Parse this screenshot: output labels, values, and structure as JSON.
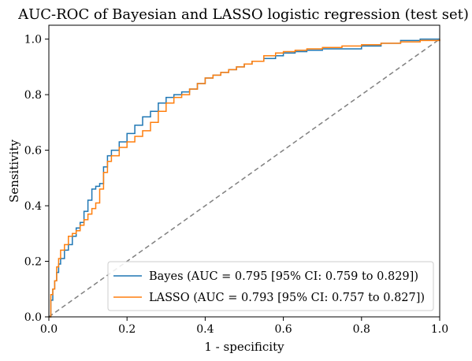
{
  "chart_data": {
    "type": "line",
    "title": "AUC-ROC of Bayesian and LASSO logistic regression (test set)",
    "xlabel": "1 - specificity",
    "ylabel": "Sensitivity",
    "xlim": [
      0,
      1
    ],
    "ylim": [
      0,
      1.05
    ],
    "xticks": [
      "0.0",
      "0.2",
      "0.4",
      "0.6",
      "0.8",
      "1.0"
    ],
    "yticks": [
      "0.0",
      "0.2",
      "0.4",
      "0.6",
      "0.8",
      "1.0"
    ],
    "grid": false,
    "legend_position": "lower-right",
    "series": [
      {
        "name": "Bayes (AUC = 0.795 [95% CI: 0.759 to 0.829])",
        "color": "#1f77b4",
        "x": [
          0,
          0.005,
          0.01,
          0.015,
          0.02,
          0.025,
          0.03,
          0.04,
          0.05,
          0.06,
          0.07,
          0.08,
          0.09,
          0.1,
          0.11,
          0.12,
          0.13,
          0.14,
          0.15,
          0.16,
          0.18,
          0.2,
          0.22,
          0.24,
          0.26,
          0.28,
          0.3,
          0.32,
          0.34,
          0.36,
          0.38,
          0.4,
          0.42,
          0.44,
          0.46,
          0.48,
          0.5,
          0.52,
          0.55,
          0.58,
          0.6,
          0.63,
          0.66,
          0.7,
          0.75,
          0.8,
          0.85,
          0.9,
          0.95,
          1.0
        ],
        "y": [
          0,
          0.06,
          0.1,
          0.13,
          0.16,
          0.19,
          0.21,
          0.24,
          0.26,
          0.29,
          0.32,
          0.34,
          0.38,
          0.42,
          0.46,
          0.47,
          0.48,
          0.54,
          0.58,
          0.6,
          0.63,
          0.66,
          0.69,
          0.72,
          0.74,
          0.77,
          0.79,
          0.8,
          0.81,
          0.82,
          0.84,
          0.86,
          0.87,
          0.88,
          0.89,
          0.9,
          0.91,
          0.92,
          0.93,
          0.94,
          0.95,
          0.955,
          0.96,
          0.965,
          0.965,
          0.975,
          0.985,
          0.995,
          1.0,
          1.0
        ]
      },
      {
        "name": "LASSO (AUC = 0.793 [95% CI: 0.757 to 0.827])",
        "color": "#ff7f0e",
        "x": [
          0,
          0.005,
          0.01,
          0.015,
          0.02,
          0.025,
          0.03,
          0.04,
          0.05,
          0.06,
          0.07,
          0.08,
          0.09,
          0.1,
          0.11,
          0.12,
          0.13,
          0.14,
          0.15,
          0.16,
          0.18,
          0.2,
          0.22,
          0.24,
          0.26,
          0.28,
          0.3,
          0.32,
          0.34,
          0.36,
          0.38,
          0.4,
          0.42,
          0.44,
          0.46,
          0.48,
          0.5,
          0.52,
          0.55,
          0.58,
          0.6,
          0.63,
          0.66,
          0.7,
          0.75,
          0.8,
          0.85,
          0.9,
          0.95,
          1.0
        ],
        "y": [
          0,
          0.08,
          0.1,
          0.13,
          0.18,
          0.21,
          0.24,
          0.26,
          0.29,
          0.3,
          0.31,
          0.33,
          0.35,
          0.37,
          0.39,
          0.41,
          0.46,
          0.52,
          0.56,
          0.58,
          0.61,
          0.63,
          0.65,
          0.67,
          0.7,
          0.74,
          0.77,
          0.79,
          0.8,
          0.82,
          0.84,
          0.86,
          0.87,
          0.88,
          0.89,
          0.9,
          0.91,
          0.92,
          0.94,
          0.95,
          0.955,
          0.96,
          0.965,
          0.97,
          0.975,
          0.98,
          0.985,
          0.99,
          0.995,
          1.0
        ]
      }
    ],
    "reference_line": {
      "x": [
        0,
        1
      ],
      "y": [
        0,
        1
      ],
      "color": "#808080",
      "style": "dashed"
    }
  }
}
